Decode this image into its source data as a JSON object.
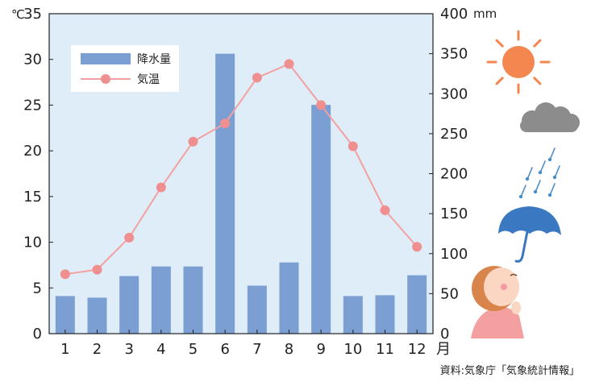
{
  "source": "資料:気象庁「気象統計情報」",
  "colors": {
    "plot_bg": "#deedf8",
    "bar": "#7b9fd3",
    "line": "#f4a0a0",
    "marker": "#f08f8f",
    "sun": "#f4874f",
    "cloud": "#8c8c8c",
    "rain": "#4a8cc9",
    "umbrella": "#3a78c2",
    "skin": "#fbd6c2",
    "hair": "#d9844a",
    "shirt": "#f4a0a0"
  },
  "icons": [
    "sun-icon",
    "cloud-icon",
    "rain-icon",
    "umbrella-icon",
    "person-looking-up-icon"
  ],
  "chart_data": {
    "type": "bar",
    "categories": [
      "1",
      "2",
      "3",
      "4",
      "5",
      "6",
      "7",
      "8",
      "9",
      "10",
      "11",
      "12"
    ],
    "x_unit": "月",
    "series": [
      {
        "name": "降水量",
        "type": "bar",
        "axis": "right",
        "values": [
          47,
          45,
          72,
          84,
          84,
          350,
          60,
          89,
          286,
          47,
          48,
          73
        ]
      },
      {
        "name": "気温",
        "type": "line",
        "axis": "left",
        "values": [
          6.5,
          7,
          10.5,
          16,
          21,
          23,
          28,
          29.5,
          25,
          20.5,
          13.5,
          9.5
        ]
      }
    ],
    "y_left": {
      "unit": "℃",
      "ylim": [
        0,
        35
      ],
      "ticks": [
        0,
        5,
        10,
        15,
        20,
        25,
        30,
        35
      ]
    },
    "y_right": {
      "unit": "mm",
      "ylim": [
        0,
        400
      ],
      "ticks": [
        0,
        50,
        100,
        150,
        200,
        250,
        300,
        350,
        400
      ]
    },
    "legend": {
      "position": "top-left",
      "entries": [
        "降水量",
        "気温"
      ]
    },
    "grid": false
  }
}
